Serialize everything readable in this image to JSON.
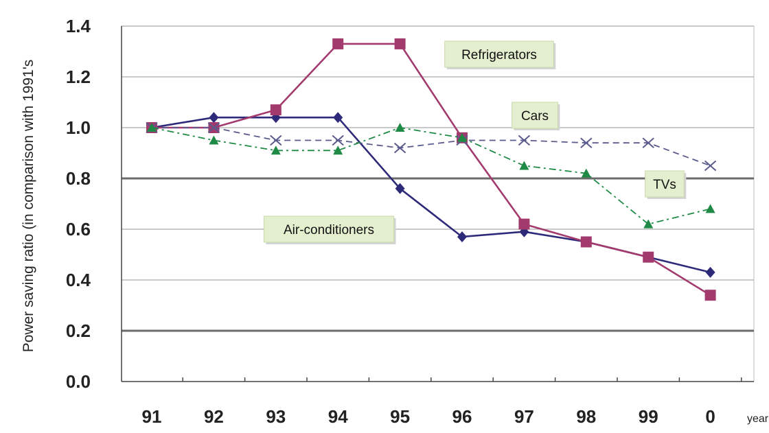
{
  "chart_data": {
    "type": "line",
    "title": "",
    "xlabel": "year",
    "ylabel": "Power saving ratio (in comparison with 1991's",
    "categories": [
      "91",
      "92",
      "93",
      "94",
      "95",
      "96",
      "97",
      "98",
      "99",
      "0"
    ],
    "y_ticks": [
      "0.0",
      "0.2",
      "0.4",
      "0.6",
      "0.8",
      "1.0",
      "1.2",
      "1.4"
    ],
    "ylim": [
      0,
      1.4
    ],
    "grid": "horizontal",
    "series": [
      {
        "name": "Air-conditioners",
        "color": "#2e2a7a",
        "marker": "diamond",
        "dash": "solid",
        "values": [
          1.0,
          1.04,
          1.04,
          1.04,
          0.76,
          0.57,
          0.59,
          0.55,
          0.49,
          0.43
        ]
      },
      {
        "name": "Refrigerators",
        "color": "#a33a6e",
        "marker": "square",
        "dash": "solid",
        "values": [
          1.0,
          1.0,
          1.07,
          1.33,
          1.33,
          0.96,
          0.62,
          0.55,
          0.49,
          0.34
        ]
      },
      {
        "name": "Cars",
        "color": "#5a5a8c",
        "marker": "x",
        "dash": "dashed",
        "values": [
          1.0,
          1.0,
          0.95,
          0.95,
          0.92,
          0.95,
          0.95,
          0.94,
          0.94,
          0.85
        ]
      },
      {
        "name": "TVs",
        "color": "#1f8a45",
        "marker": "triangle",
        "dash": "dashdot",
        "values": [
          1.0,
          0.95,
          0.91,
          0.91,
          1.0,
          0.96,
          0.85,
          0.82,
          0.62,
          0.68
        ]
      }
    ],
    "annotations": [
      "Refrigerators",
      "Cars",
      "TVs",
      "Air-conditioners"
    ]
  }
}
